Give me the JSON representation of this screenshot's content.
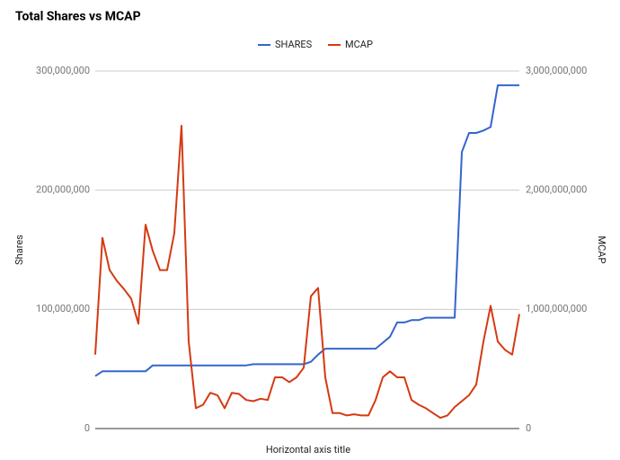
{
  "chart_data": {
    "type": "line",
    "title": "Total Shares vs MCAP",
    "x_label": "Horizontal axis title",
    "y_label": "Shares",
    "y2_label": "MCAP",
    "legend_position": "top",
    "grid": true,
    "ylim": [
      0,
      300000000
    ],
    "yticks": [
      {
        "value": 0,
        "label": "0"
      },
      {
        "value": 100000000,
        "label": "100,000,000"
      },
      {
        "value": 200000000,
        "label": "200,000,000"
      },
      {
        "value": 300000000,
        "label": "300,000,000"
      }
    ],
    "y2lim": [
      0,
      3000000000
    ],
    "y2ticks": [
      {
        "value": 0,
        "label": "0"
      },
      {
        "value": 1000000000,
        "label": "1,000,000,000"
      },
      {
        "value": 2000000000,
        "label": "2,000,000,000"
      },
      {
        "value": 3000000000,
        "label": "3,000,000,000"
      }
    ],
    "series": [
      {
        "name": "SHARES",
        "color": "#3366cc",
        "axis": "y",
        "values": [
          44000000,
          48000000,
          48000000,
          48000000,
          48000000,
          48000000,
          48000000,
          48000000,
          53000000,
          53000000,
          53000000,
          53000000,
          53000000,
          53000000,
          53000000,
          53000000,
          53000000,
          53000000,
          53000000,
          53000000,
          53000000,
          53000000,
          54000000,
          54000000,
          54000000,
          54000000,
          54000000,
          54000000,
          54000000,
          54000000,
          56000000,
          62000000,
          67000000,
          67000000,
          67000000,
          67000000,
          67000000,
          67000000,
          67000000,
          67000000,
          72000000,
          77000000,
          89000000,
          89000000,
          91000000,
          91000000,
          93000000,
          93000000,
          93000000,
          93000000,
          93000000,
          232000000,
          248000000,
          248000000,
          250000000,
          253000000,
          288000000,
          288000000,
          288000000,
          288000000
        ]
      },
      {
        "name": "MCAP",
        "color": "#d53a12",
        "axis": "y2",
        "values": [
          620000000,
          1600000000,
          1330000000,
          1240000000,
          1170000000,
          1090000000,
          880000000,
          1710000000,
          1490000000,
          1330000000,
          1330000000,
          1640000000,
          2540000000,
          730000000,
          170000000,
          200000000,
          300000000,
          280000000,
          170000000,
          300000000,
          290000000,
          240000000,
          230000000,
          250000000,
          240000000,
          430000000,
          430000000,
          390000000,
          430000000,
          510000000,
          1110000000,
          1180000000,
          430000000,
          130000000,
          130000000,
          110000000,
          120000000,
          110000000,
          110000000,
          240000000,
          430000000,
          480000000,
          430000000,
          430000000,
          240000000,
          200000000,
          170000000,
          130000000,
          90000000,
          110000000,
          180000000,
          230000000,
          280000000,
          370000000,
          730000000,
          1030000000,
          730000000,
          660000000,
          620000000,
          960000000
        ]
      }
    ]
  }
}
